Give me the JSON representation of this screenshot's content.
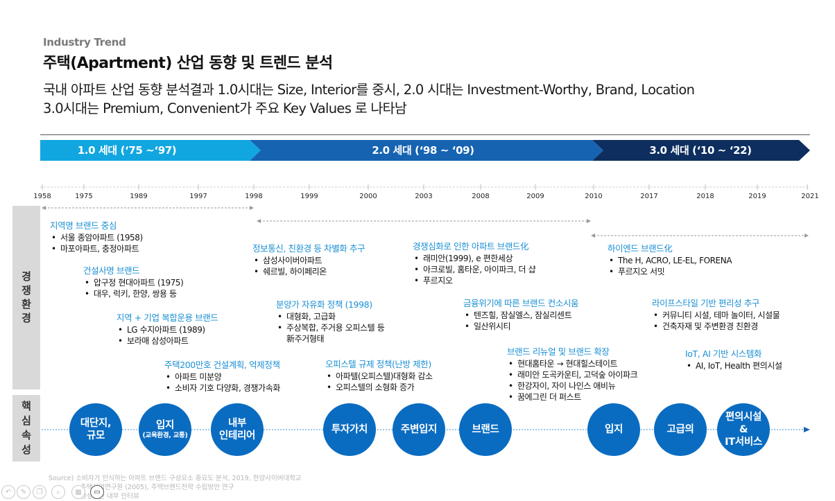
{
  "header": {
    "kicker": "Industry Trend",
    "title": "주택(Apartment) 산업 동향 및 트렌드 분석",
    "subtitle_line1": "국내 아파트 산업 동향 분석결과 1.0시대는 Size, Interior를 중시, 2.0 시대는 Investment-Worthy, Brand, Location",
    "subtitle_line2": "3.0시대는 Premium, Convenient가 주요 Key Values 로 나타남"
  },
  "eras": [
    {
      "label": "1.0 세대 (‘75 ~‘97)",
      "color": "#11a6e0"
    },
    {
      "label": "2.0 세대 (‘98 ~ ‘09)",
      "color": "#1663b1"
    },
    {
      "label": "3.0 세대 (‘10 ~ ‘22)",
      "color": "#0d2e5e"
    }
  ],
  "years": [
    "1958",
    "1975",
    "1989",
    "1997",
    "1998",
    "1999",
    "2000",
    "2003",
    "2008",
    "2009",
    "2010",
    "2017",
    "2018",
    "2019",
    "2021"
  ],
  "side": {
    "top_label": "경쟁환경",
    "bottom_label": "핵심속성"
  },
  "blocks": [
    {
      "heading": "지역명 브랜드 중심",
      "items": [
        "서울 종암아파트 (1958)",
        "마포아파트, 충정아파트"
      ]
    },
    {
      "heading": "건설사명 브랜드",
      "items": [
        "압구정 현대아파트 (1975)",
        "대우, 럭키,  한양, 쌍용 등"
      ]
    },
    {
      "heading": "지역 + 기업 복합운용 브랜드",
      "items": [
        "LG 수지아파트 (1989)",
        "보라매 삼성아파트"
      ]
    },
    {
      "heading": "주택200만호 건설계획, 억제정책",
      "items": [
        "아파트 미분양",
        "소비자 기호 다양화, 경쟁가속화"
      ]
    },
    {
      "heading": "정보통신, 친환경 등 차별화 추구",
      "items": [
        "삼성사이버아파트",
        "쉐르빌, 하이페리온"
      ]
    },
    {
      "heading": "분양가 자유화 정책 (1998)",
      "items": [
        "대형화, 고급화",
        "주상복합, 주거용 오피스텔 등"
      ],
      "cont": "新주거형태"
    },
    {
      "heading": "오피스텔 규제 정책(난방 제한)",
      "items": [
        "아파텔(오피스텔)대형화 감소",
        "오피스텔의 소형화 증가"
      ]
    },
    {
      "heading": "경쟁심화로 인한 아파트 브랜드化",
      "items": [
        "래미안(1999), e 편한세상",
        "아크로빌, 홈타운, 아이파크, 더 샵",
        "푸르지오"
      ]
    },
    {
      "heading": "금융위기에 따른 브랜드 컨소시움",
      "items": [
        "텐즈힐, 잠실엘스, 잠실리센트",
        "일산위시티"
      ]
    },
    {
      "heading": "브랜드  리뉴얼 및 브랜드 확장",
      "items": [
        "현대홈타운 → 현대힐스테이트",
        "래미안 도곡카운티, 고덕숲 아이파크",
        "한강자이, 자이 나인스 애비뉴",
        "꿈에그린 더 퍼스트"
      ]
    },
    {
      "heading": "하이엔드 브랜드化",
      "items": [
        "The H, ACRO, LE-EL, FORENA",
        "푸르지오 서밋"
      ]
    },
    {
      "heading": "라이프스타일 기반 편리성 추구",
      "items": [
        "커뮤니티 시설, 테마 놀이터, 시설물",
        "건축자재 및 주변환경 친환경"
      ]
    },
    {
      "heading": "IoT, AI 기반 시스템화",
      "items": [
        "AI, IoT, Health 편의시설"
      ]
    }
  ],
  "circles": [
    {
      "line1": "대단지,",
      "line2": "규모"
    },
    {
      "line1": "입지",
      "small": "(교육환경, 교통)"
    },
    {
      "line1": "내부",
      "line2": "인테리어"
    },
    {
      "line1": "투자가치"
    },
    {
      "line1": "주변입지"
    },
    {
      "line1": "브랜드"
    },
    {
      "line1": "입지"
    },
    {
      "line1": "고급의"
    },
    {
      "line1": "편의시설",
      "line2": "&",
      "line3": "IT서비스"
    }
  ],
  "source": {
    "line1": "Source) 소비자가 인식하는 아파트 브랜드 구성요소 중요도 분석, 2019, 한양사이버대학교",
    "line2": "주택산업연구원 (2005), 주택브랜드전략 수립방안 연구",
    "line3": "삼성물산 내부 인터뷰"
  },
  "toolbar": [
    "undo-icon",
    "pen-icon",
    "copy-icon",
    "zoom-icon",
    "grid-icon",
    "video-icon"
  ]
}
